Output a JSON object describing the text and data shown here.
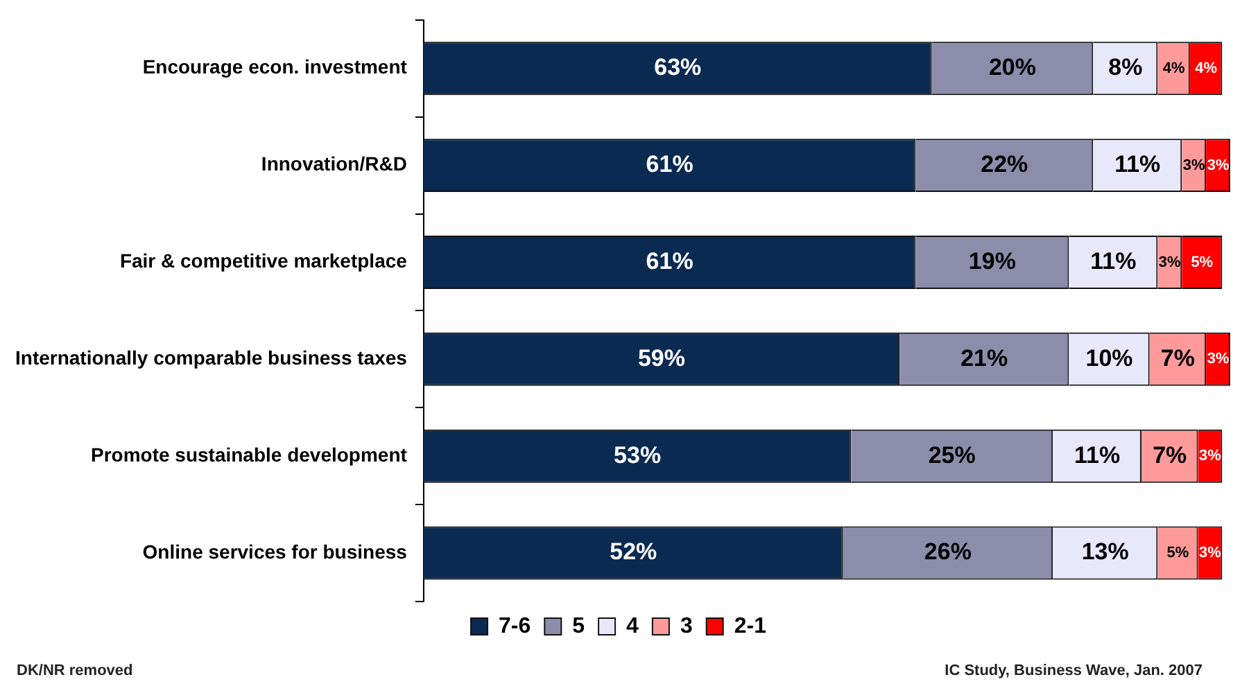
{
  "chart_data": {
    "type": "bar",
    "orientation": "horizontal",
    "stacked": true,
    "legend": "bottom",
    "tick_labels": "y",
    "grid": false,
    "categories": [
      "Encourage econ. investment",
      "Innovation/R&D",
      "Fair & competitive marketplace",
      "Internationally comparable business taxes",
      "Promote sustainable development",
      "Online services for business"
    ],
    "series": [
      {
        "name": "7-6",
        "color": "#0b2a52",
        "values": [
          63,
          61,
          61,
          59,
          53,
          52
        ],
        "value_labels": [
          "63%",
          "61%",
          "61%",
          "59%",
          "53%",
          "52%"
        ]
      },
      {
        "name": "5",
        "color": "#8c8cab",
        "values": [
          20,
          22,
          19,
          21,
          25,
          26
        ],
        "value_labels": [
          "20%",
          "22%",
          "19%",
          "21%",
          "25%",
          "26%"
        ]
      },
      {
        "name": "4",
        "color": "#e8e8fb",
        "values": [
          8,
          11,
          11,
          10,
          11,
          13
        ],
        "value_labels": [
          "8%",
          "11%",
          "11%",
          "10%",
          "11%",
          "13%"
        ]
      },
      {
        "name": "3",
        "color": "#ff9a9a",
        "values": [
          4,
          3,
          3,
          7,
          7,
          5
        ],
        "value_labels": [
          "4%",
          "3%",
          "3%",
          "7%",
          "7%",
          "5%"
        ]
      },
      {
        "name": "2-1",
        "color": "#ff0000",
        "values": [
          4,
          3,
          5,
          3,
          3,
          3
        ],
        "value_labels": [
          "4%",
          "3%",
          "5%",
          "3%",
          "3%",
          "3%"
        ]
      }
    ],
    "annotations": [
      "DK/NR removed",
      "IC Study, Business Wave, Jan. 2007"
    ]
  }
}
